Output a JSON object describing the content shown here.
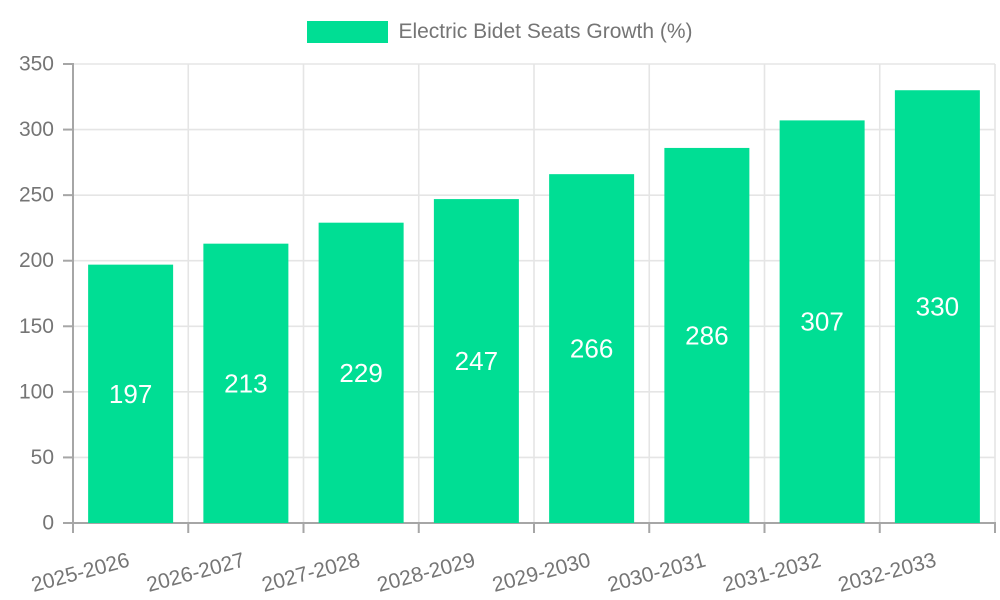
{
  "legend": {
    "label": "Electric Bidet Seats Growth (%)"
  },
  "chart_data": {
    "type": "bar",
    "title": "Electric Bidet Seats Growth (%)",
    "categories": [
      "2025-2026",
      "2026-2027",
      "2027-2028",
      "2028-2029",
      "2029-2030",
      "2030-2031",
      "2031-2032",
      "2032-2033"
    ],
    "values": [
      197,
      213,
      229,
      247,
      266,
      286,
      307,
      330
    ],
    "xlabel": "",
    "ylabel": "",
    "ylim": [
      0,
      350
    ],
    "yticks": [
      0,
      50,
      100,
      150,
      200,
      250,
      300,
      350
    ],
    "grid": true,
    "legend_position": "top",
    "bar_label_position": "center-inside",
    "colors": {
      "bar": "#00DE94",
      "bar_label": "#ffffff",
      "axis_text": "#757575",
      "axis_line": "#a6a6a6",
      "grid_line": "#e5e5e5"
    }
  }
}
